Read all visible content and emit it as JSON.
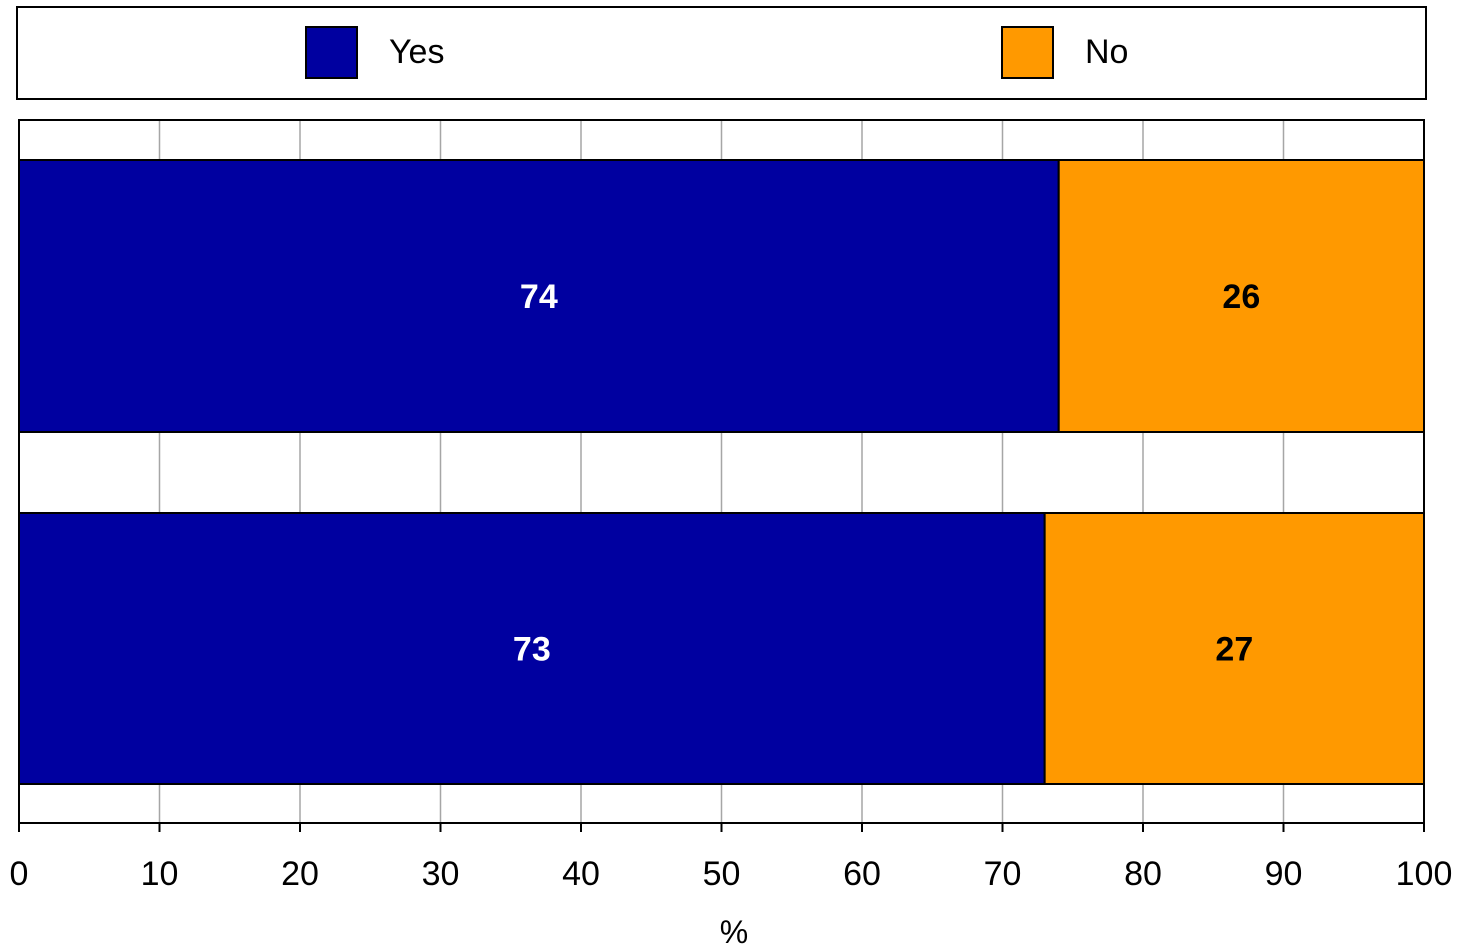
{
  "chart_data": {
    "type": "bar",
    "orientation": "horizontal",
    "stacked": true,
    "categories": [
      "",
      ""
    ],
    "series": [
      {
        "name": "Yes",
        "values": [
          74,
          73
        ],
        "color": "#0000A0",
        "label_color": "#FFFFFF"
      },
      {
        "name": "No",
        "values": [
          26,
          27
        ],
        "color": "#FF9900",
        "label_color": "#000000"
      }
    ],
    "xlabel": "%",
    "ylabel": "",
    "xlim": [
      0,
      100
    ],
    "xticks": [
      "0",
      "10",
      "20",
      "30",
      "40",
      "50",
      "60",
      "70",
      "80",
      "90",
      "100"
    ],
    "grid": true,
    "legend_position": "top"
  }
}
